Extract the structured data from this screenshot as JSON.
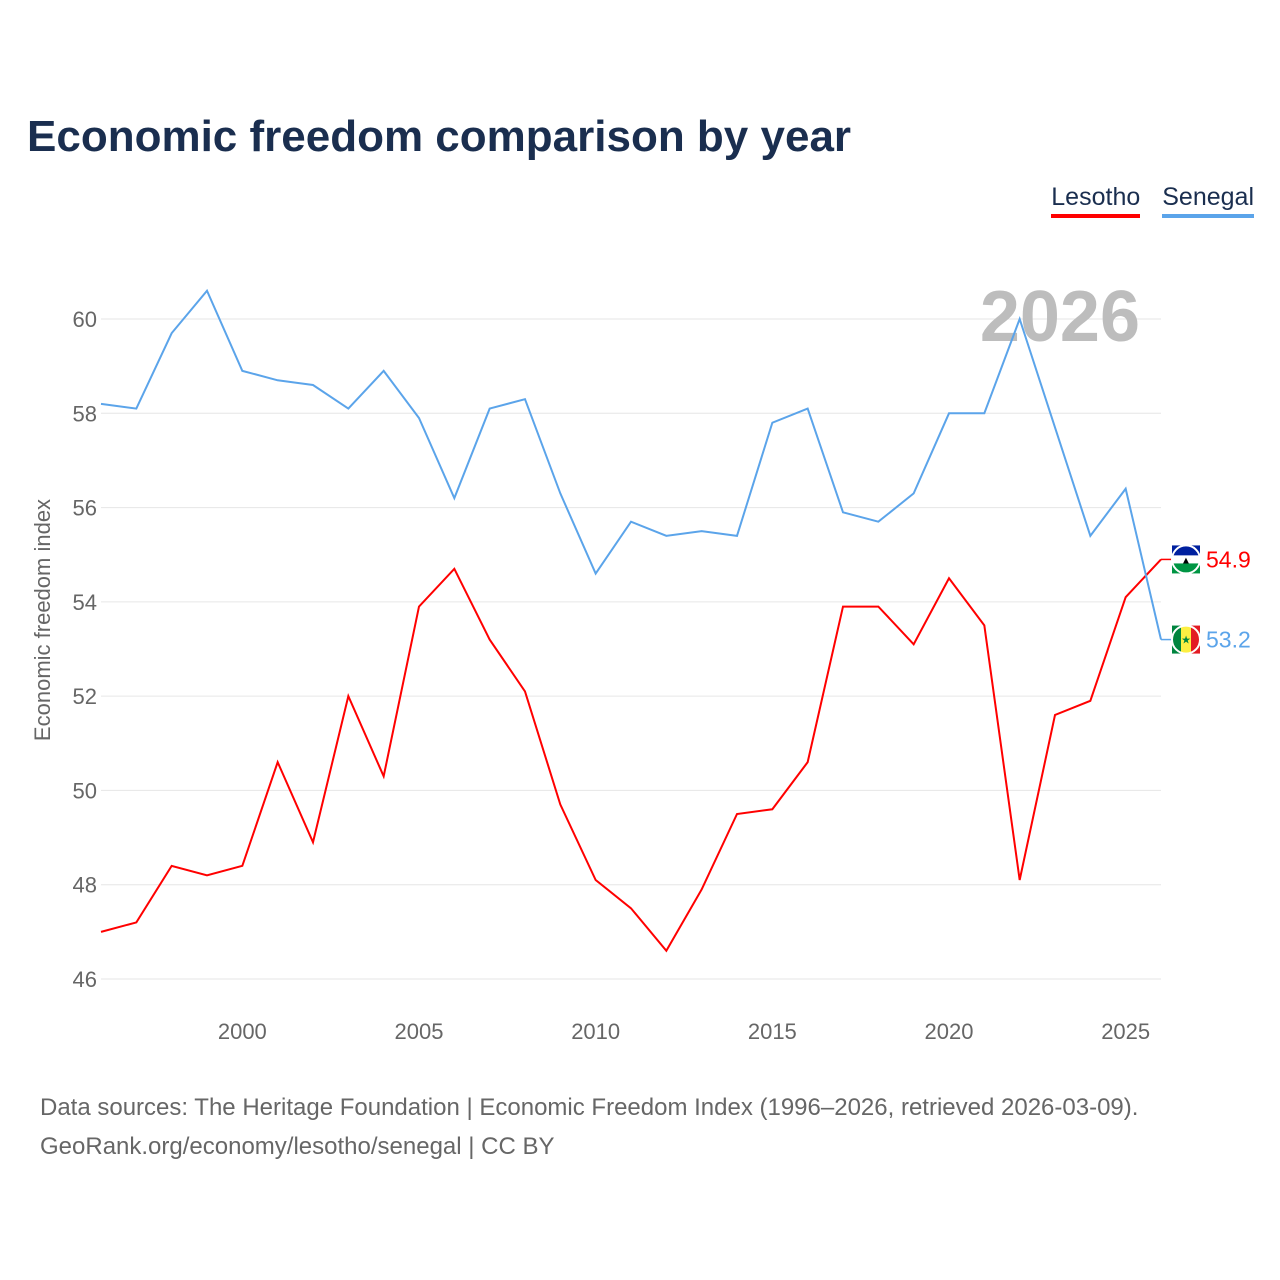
{
  "chart_data": {
    "type": "line",
    "title": "Economic freedom comparison by year",
    "ylabel": "Economic freedom index",
    "xlabel": "",
    "xlim": [
      1996,
      2026
    ],
    "ylim": [
      46,
      61
    ],
    "yticks": [
      46,
      48,
      50,
      52,
      54,
      56,
      58,
      60
    ],
    "xticks": [
      2000,
      2005,
      2010,
      2015,
      2020,
      2025
    ],
    "grid": true,
    "legend_position": "top-right",
    "year_watermark": "2026",
    "x": [
      1996,
      1997,
      1998,
      1999,
      2000,
      2001,
      2002,
      2003,
      2004,
      2005,
      2006,
      2007,
      2008,
      2009,
      2010,
      2011,
      2012,
      2013,
      2014,
      2015,
      2016,
      2017,
      2018,
      2019,
      2020,
      2021,
      2022,
      2023,
      2024,
      2025,
      2026
    ],
    "series": [
      {
        "name": "Lesotho",
        "color": "#ff0000",
        "end_label": "54.9",
        "values": [
          47.0,
          47.2,
          48.4,
          48.2,
          48.4,
          50.6,
          48.9,
          52.0,
          50.3,
          53.9,
          54.7,
          53.2,
          52.1,
          49.7,
          48.1,
          47.5,
          46.6,
          47.9,
          49.5,
          49.6,
          50.6,
          53.9,
          53.9,
          53.1,
          54.5,
          53.5,
          48.1,
          51.6,
          51.9,
          54.1,
          54.9
        ]
      },
      {
        "name": "Senegal",
        "color": "#5ba4ea",
        "end_label": "53.2",
        "values": [
          58.2,
          58.1,
          59.7,
          60.6,
          58.9,
          58.7,
          58.6,
          58.1,
          58.9,
          57.9,
          56.2,
          58.1,
          58.3,
          56.3,
          54.6,
          55.7,
          55.4,
          55.5,
          55.4,
          57.8,
          58.1,
          55.9,
          55.7,
          56.3,
          58.0,
          58.0,
          60.0,
          57.7,
          55.4,
          56.4,
          53.2
        ]
      }
    ]
  },
  "footer": {
    "line1": "Data sources: The Heritage Foundation | Economic Freedom Index (1996–2026, retrieved 2026-03-09).",
    "line2": "GeoRank.org/economy/lesotho/senegal | CC BY"
  }
}
